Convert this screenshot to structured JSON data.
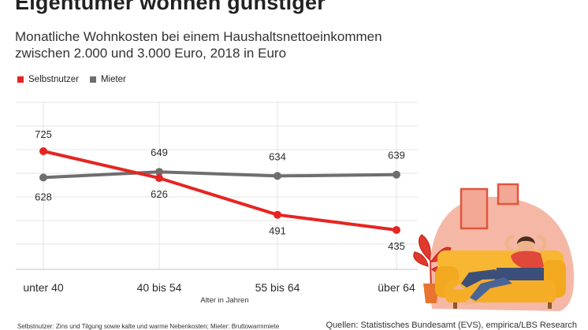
{
  "header": {
    "title": "Eigentümer wohnen günstiger",
    "subtitle": "Monatliche Wohnkosten bei einem Haushaltsnettoeinkommen zwischen 2.000 und 3.000 Euro, 2018 in Euro"
  },
  "legend": {
    "items": [
      {
        "label": "Selbstnutzer",
        "color": "#e52521"
      },
      {
        "label": "Mieter",
        "color": "#6e6e6e"
      }
    ]
  },
  "chart_data": {
    "type": "line",
    "categories": [
      "unter 40",
      "40 bis 54",
      "55 bis 64",
      "über 64"
    ],
    "xlabel": "Alter in Jahren",
    "ylabel": "",
    "ylim": [
      400,
      750
    ],
    "grid": true,
    "legend_position": "top-left",
    "series": [
      {
        "name": "Selbstnutzer",
        "color": "#e52521",
        "values": [
          725,
          626,
          491,
          435
        ]
      },
      {
        "name": "Mieter",
        "color": "#6e6e6e",
        "values": [
          628,
          649,
          634,
          639
        ]
      }
    ]
  },
  "footer": {
    "footnote": "Selbstnutzer: Zins und Tilgung sowie kalte und warme Nebenkosten; Mieter: Bruttowarmmiete",
    "source": "Quellen: Statistisches Bundesamt (EVS), empirica/LBS Research"
  }
}
